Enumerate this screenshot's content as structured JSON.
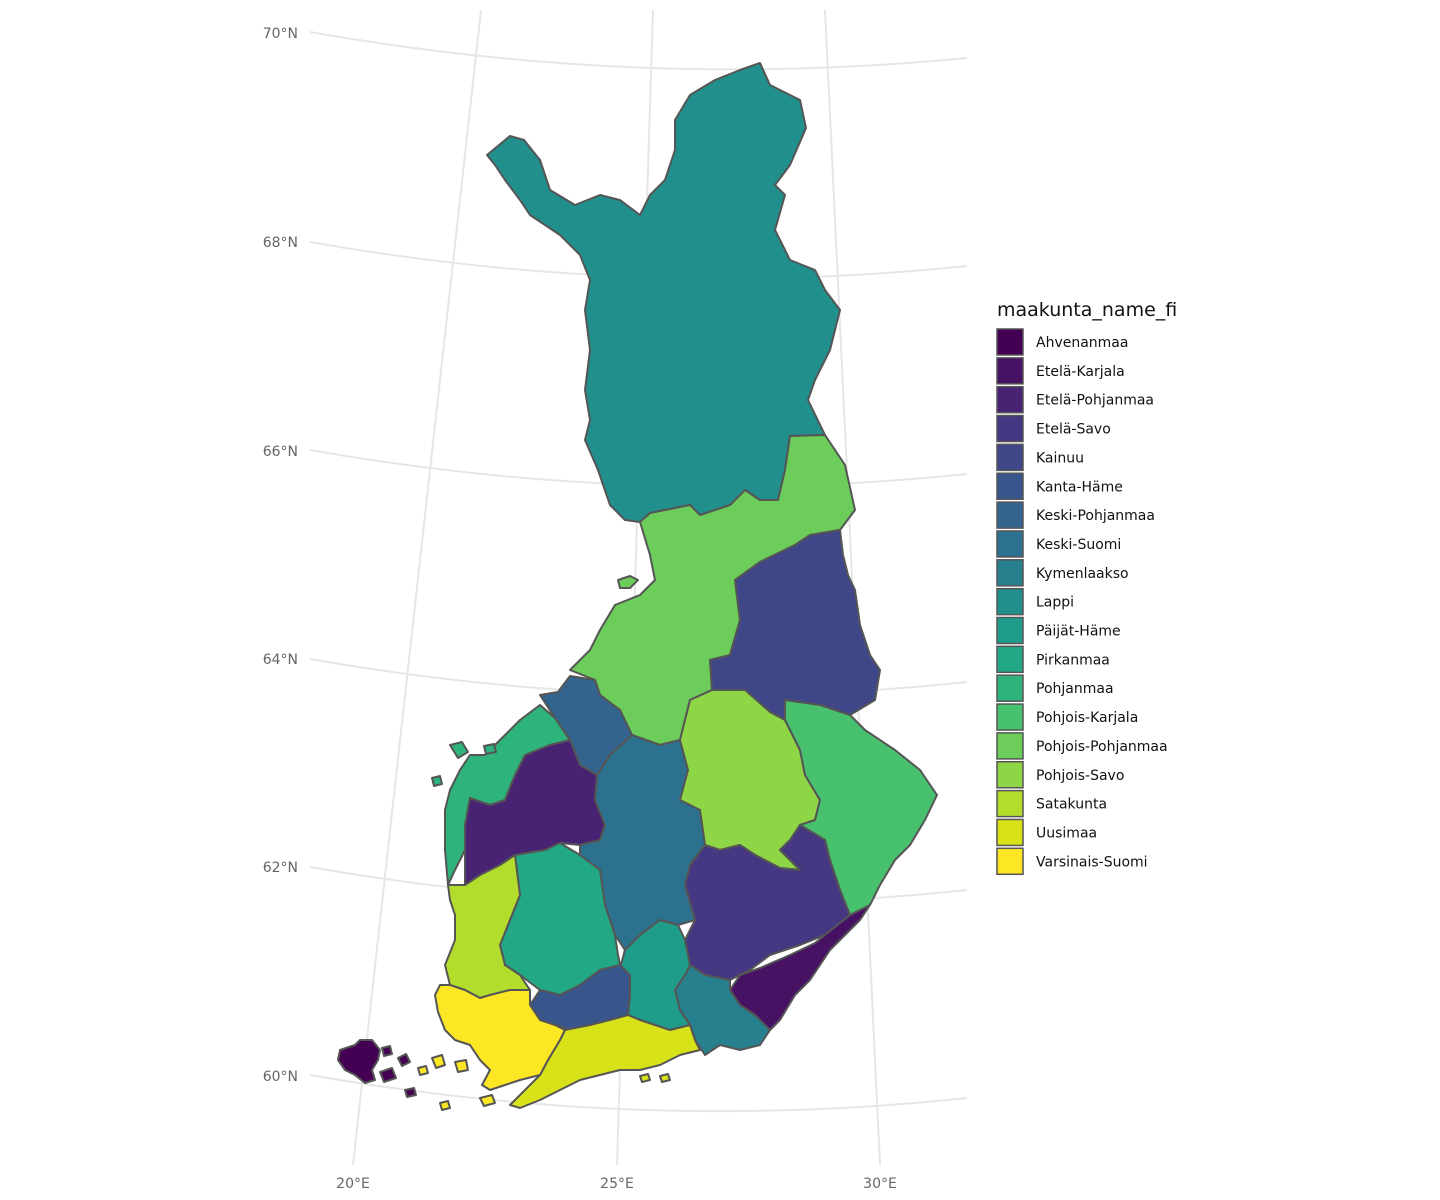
{
  "legend": {
    "title": "maakunta_name_fi",
    "items": [
      {
        "label": "Ahvenanmaa",
        "color": "#440154"
      },
      {
        "label": "Etelä-Karjala",
        "color": "#471164"
      },
      {
        "label": "Etelä-Pohjanmaa",
        "color": "#482374"
      },
      {
        "label": "Etelä-Savo",
        "color": "#453781"
      },
      {
        "label": "Kainuu",
        "color": "#3f4788"
      },
      {
        "label": "Kanta-Häme",
        "color": "#39568c"
      },
      {
        "label": "Keski-Pohjanmaa",
        "color": "#32648e"
      },
      {
        "label": "Keski-Suomi",
        "color": "#2c728e"
      },
      {
        "label": "Kymenlaakso",
        "color": "#27808e"
      },
      {
        "label": "Lappi",
        "color": "#21908d"
      },
      {
        "label": "Päijät-Häme",
        "color": "#1f9d8a"
      },
      {
        "label": "Pirkanmaa",
        "color": "#22a884"
      },
      {
        "label": "Pohjanmaa",
        "color": "#2eb37c"
      },
      {
        "label": "Pohjois-Karjala",
        "color": "#48c16e"
      },
      {
        "label": "Pohjois-Pohjanmaa",
        "color": "#6ccd5a"
      },
      {
        "label": "Pohjois-Savo",
        "color": "#8ed645"
      },
      {
        "label": "Satakunta",
        "color": "#b2dd2d"
      },
      {
        "label": "Uusimaa",
        "color": "#d8e219"
      },
      {
        "label": "Varsinais-Suomi",
        "color": "#fde725"
      }
    ]
  },
  "axes": {
    "lat_labels": [
      "70°N",
      "68°N",
      "66°N",
      "64°N",
      "62°N",
      "60°N"
    ],
    "lon_labels": [
      "20°E",
      "25°E",
      "30°E"
    ]
  }
}
